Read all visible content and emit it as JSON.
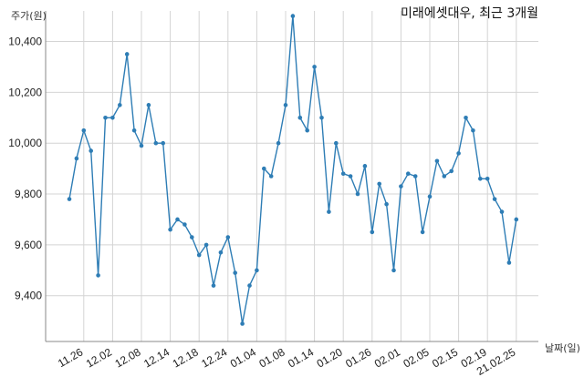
{
  "chart_data": {
    "type": "line",
    "title": "미래에셋대우, 최근 3개월",
    "ylabel": "주가(원)",
    "xlabel": "날짜(일)",
    "ylim": [
      9220,
      10520
    ],
    "yticks": [
      9400,
      9600,
      9800,
      10000,
      10200,
      10400
    ],
    "ytick_labels": [
      "9,400",
      "9,600",
      "9,800",
      "10,000",
      "10,200",
      "10,400"
    ],
    "xtick_labels": [
      "11.26",
      "12.02",
      "12.08",
      "12.14",
      "12.18",
      "12.24",
      "01.04",
      "01.08",
      "01.14",
      "01.20",
      "01.26",
      "02.01",
      "02.05",
      "02.15",
      "02.19",
      "21.02.25"
    ],
    "xtick_index": [
      2,
      6,
      10,
      14,
      18,
      22,
      26,
      30,
      34,
      38,
      42,
      46,
      50,
      54,
      58,
      62
    ],
    "grid": true,
    "series": [
      {
        "color": "#2e7db5",
        "values": [
          9780,
          9940,
          10050,
          9970,
          9480,
          10100,
          10100,
          10150,
          10350,
          10050,
          9990,
          10150,
          10000,
          10000,
          9660,
          9700,
          9680,
          9630,
          9560,
          9600,
          9440,
          9570,
          9630,
          9490,
          9290,
          9440,
          9500,
          9900,
          9870,
          10000,
          10150,
          10500,
          10100,
          10050,
          10300,
          10100,
          9730,
          10000,
          9880,
          9870,
          9800,
          9910,
          9650,
          9840,
          9760,
          9500,
          9830,
          9880,
          9870,
          9650,
          9790,
          9930,
          9870,
          9890,
          9960,
          10100,
          10050,
          9860,
          9860,
          9780,
          9730,
          9530,
          9700
        ]
      }
    ]
  }
}
